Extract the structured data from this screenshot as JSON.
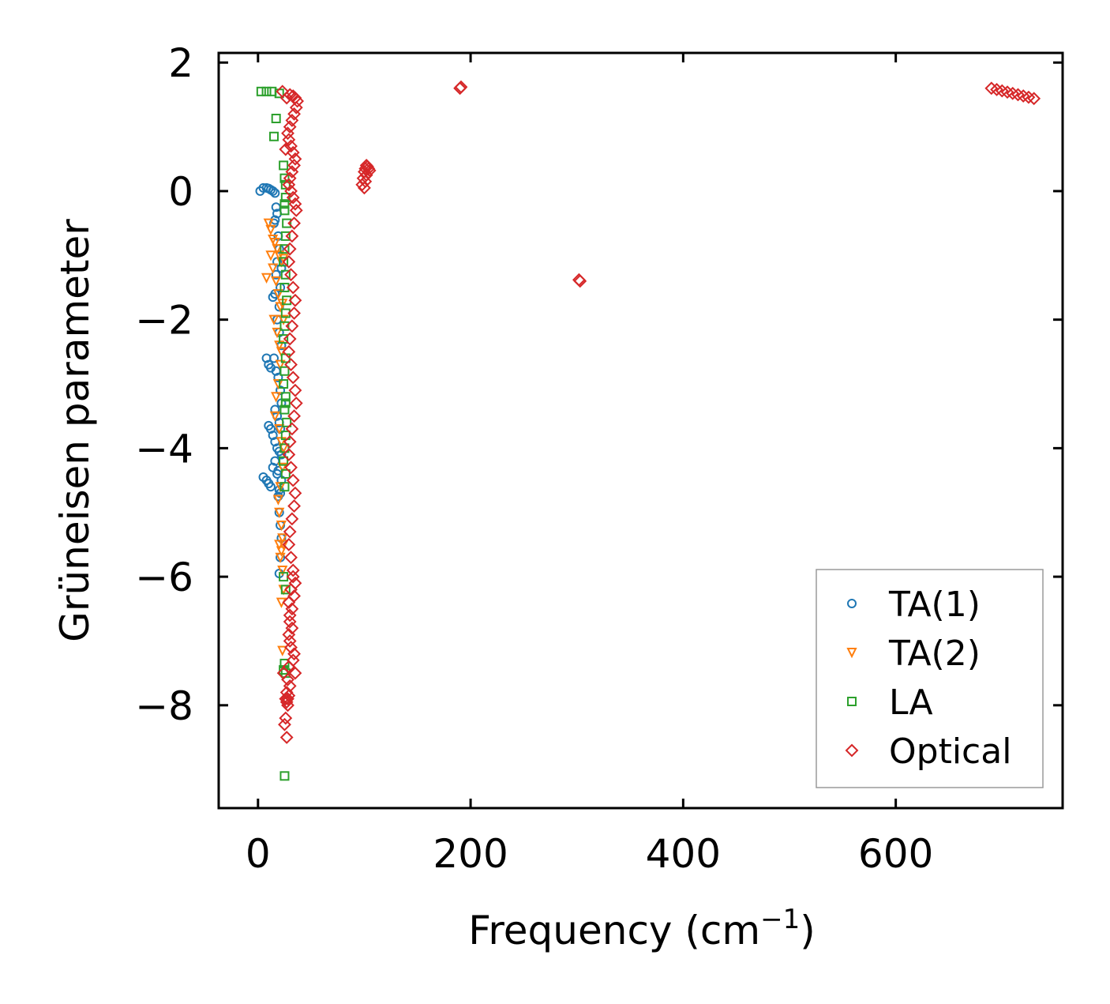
{
  "chart_data": {
    "type": "scatter",
    "title": "",
    "xlabel": "Frequency (cm",
    "xlabel_sup": "−1",
    "xlabel_end": ")",
    "ylabel": "Grüneisen parameter",
    "xlim": [
      -37,
      757
    ],
    "ylim": [
      -9.6,
      2.15
    ],
    "x_ticks": [
      0,
      200,
      400,
      600
    ],
    "x_tick_labels": [
      "0",
      "200",
      "400",
      "600"
    ],
    "y_ticks": [
      2,
      0,
      -2,
      -4,
      -6,
      -8
    ],
    "y_tick_labels": [
      "2",
      "0",
      "−2",
      "−4",
      "−6",
      "−8"
    ],
    "grid": false,
    "legend_position": "lower-right",
    "legend": [
      {
        "label": "TA(1)",
        "marker": "circle",
        "color": "#1f77b4"
      },
      {
        "label": "TA(2)",
        "marker": "triangle-down",
        "color": "#ff7f0e"
      },
      {
        "label": "LA",
        "marker": "square",
        "color": "#2ca02c"
      },
      {
        "label": "Optical",
        "marker": "diamond",
        "color": "#d62728"
      }
    ],
    "series": [
      {
        "name": "TA(1)",
        "marker": "circle",
        "color": "#1f77b4",
        "x": [
          2,
          5,
          8,
          10,
          12,
          14,
          16,
          17,
          18,
          16,
          15,
          19,
          20,
          18,
          17,
          21,
          22,
          20,
          16,
          14,
          18,
          20,
          22,
          8,
          10,
          12,
          15,
          17,
          19,
          21,
          22,
          16,
          18,
          20,
          21,
          10,
          12,
          14,
          16,
          18,
          20,
          22,
          5,
          8,
          10,
          12,
          14,
          16,
          18,
          20,
          21,
          22,
          19,
          20,
          21,
          22,
          21,
          20,
          19
        ],
        "y": [
          0.0,
          0.05,
          0.05,
          0.04,
          0.02,
          0.0,
          -0.03,
          -0.25,
          -0.35,
          -0.45,
          -0.5,
          -0.7,
          -0.9,
          -1.1,
          -1.3,
          -1.5,
          -1.2,
          -1.8,
          -1.6,
          -1.65,
          -2.0,
          -2.2,
          -2.4,
          -2.6,
          -2.7,
          -2.75,
          -2.6,
          -2.8,
          -2.9,
          -3.1,
          -3.3,
          -3.4,
          -3.5,
          -3.6,
          -3.7,
          -3.65,
          -3.7,
          -3.8,
          -3.9,
          -4.0,
          -4.05,
          -4.1,
          -4.45,
          -4.5,
          -4.55,
          -4.6,
          -4.3,
          -4.2,
          -4.4,
          -4.65,
          -4.7,
          -4.5,
          -4.75,
          -5.0,
          -5.2,
          -5.4,
          -5.7,
          -5.95,
          -4.35
        ]
      },
      {
        "name": "TA(2)",
        "marker": "triangle-down",
        "color": "#ff7f0e",
        "x": [
          10,
          12,
          14,
          16,
          18,
          20,
          22,
          24,
          8,
          12,
          14,
          17,
          19,
          21,
          23,
          24,
          15,
          18,
          20,
          22,
          21,
          19,
          17,
          16,
          20,
          22,
          24,
          23,
          21,
          19,
          20,
          22,
          23,
          24,
          22,
          20,
          21,
          23,
          24,
          22,
          23
        ],
        "y": [
          -0.5,
          -0.6,
          -0.75,
          -0.8,
          -0.9,
          -1.0,
          -1.1,
          -1.05,
          -1.35,
          -1.0,
          -1.2,
          -1.4,
          -1.6,
          -1.8,
          -1.75,
          -2.0,
          -2.0,
          -2.2,
          -2.4,
          -2.5,
          -2.7,
          -3.0,
          -3.2,
          -3.5,
          -3.7,
          -3.9,
          -4.0,
          -4.3,
          -4.6,
          -4.8,
          -5.0,
          -5.2,
          -5.4,
          -5.5,
          -5.6,
          -5.5,
          -5.7,
          -5.9,
          -6.2,
          -6.4,
          -7.15
        ]
      },
      {
        "name": "LA",
        "marker": "square",
        "color": "#2ca02c",
        "x": [
          3,
          8,
          13,
          20,
          17,
          15,
          25,
          26,
          24,
          26,
          25,
          27,
          26,
          25,
          24,
          26,
          25,
          27,
          26,
          25,
          24,
          26,
          25,
          24,
          26,
          25,
          27,
          26,
          25,
          24,
          26,
          25,
          24,
          26,
          25,
          24,
          26,
          25,
          26,
          25
        ],
        "y": [
          1.55,
          1.55,
          1.55,
          1.52,
          1.13,
          0.85,
          0.2,
          0.1,
          0.4,
          -0.1,
          -0.3,
          -0.5,
          -0.7,
          -0.9,
          -1.1,
          -1.3,
          -1.5,
          -1.7,
          -1.9,
          -2.1,
          -2.3,
          -2.6,
          -2.8,
          -3.0,
          -3.2,
          -3.4,
          -3.6,
          -3.8,
          -4.0,
          -4.2,
          -4.4,
          -4.6,
          -6.0,
          -6.2,
          -7.35,
          -7.45,
          -7.5,
          -9.1,
          -3.3,
          -0.2
        ]
      },
      {
        "name": "Optical",
        "marker": "diamond",
        "color": "#d62728",
        "x": [
          23,
          27,
          30,
          33,
          35,
          37,
          36,
          34,
          32,
          30,
          28,
          29,
          31,
          33,
          35,
          34,
          32,
          30,
          29,
          31,
          33,
          35,
          36,
          34,
          32,
          30,
          29,
          31,
          33,
          35,
          34,
          32,
          30,
          29,
          31,
          33,
          35,
          36,
          34,
          32,
          30,
          29,
          31,
          33,
          35,
          34,
          32,
          30,
          29,
          31,
          33,
          35,
          34,
          32,
          30,
          29,
          31,
          33,
          35,
          34,
          32,
          30,
          29,
          31,
          33,
          30,
          29,
          28,
          27,
          26,
          28,
          30,
          27,
          29,
          28,
          26,
          25,
          27,
          24,
          26,
          98,
          99,
          100,
          101,
          102,
          103,
          104,
          105,
          100,
          101,
          102,
          190,
          191,
          302,
          303,
          690,
          695,
          700,
          705,
          710,
          715,
          720,
          725,
          730
        ],
        "y": [
          1.55,
          1.45,
          1.5,
          1.48,
          1.45,
          1.4,
          1.3,
          1.2,
          1.1,
          1.0,
          0.9,
          0.8,
          0.7,
          0.6,
          0.5,
          0.4,
          0.3,
          0.2,
          0.1,
          0.0,
          -0.1,
          -0.2,
          -0.3,
          -0.5,
          -0.7,
          -0.9,
          -1.1,
          -1.3,
          -1.5,
          -1.7,
          -1.9,
          -2.1,
          -2.3,
          -2.5,
          -2.7,
          -2.9,
          -3.1,
          -3.3,
          -3.5,
          -3.7,
          -3.9,
          -4.1,
          -4.3,
          -4.5,
          -4.7,
          -4.9,
          -5.1,
          -5.3,
          -5.5,
          -5.7,
          -5.9,
          -6.1,
          -6.3,
          -6.5,
          -6.7,
          -6.9,
          -7.1,
          -7.3,
          -7.5,
          -7.2,
          -6.8,
          -6.6,
          -6.4,
          -6.2,
          -6.0,
          -7.0,
          -7.4,
          -7.6,
          -7.8,
          -7.9,
          -8.0,
          -7.7,
          -7.95,
          -7.85,
          -7.9,
          -8.2,
          -8.3,
          -8.5,
          -7.5,
          0.65,
          0.1,
          0.2,
          0.3,
          0.35,
          0.4,
          0.38,
          0.35,
          0.32,
          0.05,
          0.15,
          0.25,
          1.6,
          1.62,
          -1.38,
          -1.4,
          1.6,
          1.58,
          1.56,
          1.54,
          1.52,
          1.5,
          1.48,
          1.46,
          1.44
        ]
      }
    ]
  }
}
